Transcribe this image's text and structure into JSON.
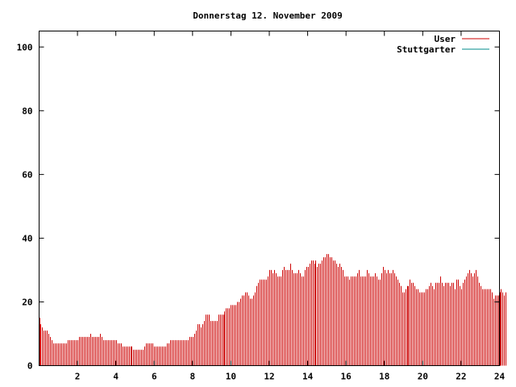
{
  "chart_data": {
    "type": "bar",
    "title": "Donnerstag 12. November 2009",
    "xlabel": "",
    "ylabel": "",
    "xlim": [
      0,
      24
    ],
    "ylim": [
      0,
      105
    ],
    "xticks": [
      2,
      4,
      6,
      8,
      10,
      12,
      14,
      16,
      18,
      20,
      22,
      24
    ],
    "yticks": [
      0,
      20,
      40,
      60,
      80,
      100
    ],
    "grid": false,
    "legend_position": "top-right",
    "series": [
      {
        "name": "User",
        "color": "#cc0000",
        "interval_minutes": 5,
        "values": [
          15,
          13,
          12,
          11,
          11,
          11,
          10,
          9,
          8,
          7,
          7,
          7,
          7,
          7,
          7,
          7,
          7,
          7,
          8,
          8,
          8,
          8,
          8,
          8,
          8,
          9,
          9,
          9,
          9,
          9,
          9,
          9,
          10,
          9,
          9,
          9,
          9,
          9,
          10,
          9,
          8,
          8,
          8,
          8,
          8,
          8,
          8,
          8,
          8,
          7,
          7,
          7,
          6,
          6,
          6,
          6,
          6,
          6,
          6,
          5,
          5,
          5,
          5,
          5,
          5,
          5,
          6,
          7,
          7,
          7,
          7,
          7,
          6,
          6,
          6,
          6,
          6,
          6,
          6,
          6,
          7,
          7,
          8,
          8,
          8,
          8,
          8,
          8,
          8,
          8,
          8,
          8,
          8,
          8,
          9,
          9,
          9,
          10,
          11,
          13,
          13,
          12,
          13,
          14,
          16,
          16,
          16,
          14,
          14,
          14,
          14,
          14,
          16,
          16,
          16,
          16,
          17,
          18,
          18,
          18,
          19,
          19,
          19,
          19,
          20,
          20,
          21,
          22,
          22,
          23,
          23,
          22,
          21,
          21,
          22,
          23,
          25,
          26,
          27,
          27,
          27,
          27,
          27,
          28,
          30,
          30,
          29,
          30,
          29,
          28,
          28,
          28,
          30,
          31,
          30,
          30,
          30,
          32,
          30,
          29,
          29,
          29,
          30,
          29,
          28,
          28,
          30,
          31,
          31,
          32,
          33,
          33,
          32,
          33,
          31,
          32,
          32,
          33,
          34,
          34,
          35,
          35,
          34,
          34,
          33,
          33,
          32,
          31,
          32,
          31,
          30,
          28,
          28,
          28,
          27,
          28,
          28,
          28,
          28,
          29,
          30,
          28,
          28,
          28,
          28,
          30,
          29,
          28,
          28,
          28,
          29,
          28,
          27,
          27,
          29,
          31,
          30,
          29,
          30,
          29,
          29,
          30,
          29,
          28,
          27,
          26,
          25,
          23,
          23,
          24,
          25,
          25,
          27,
          26,
          26,
          25,
          24,
          24,
          23,
          23,
          23,
          23,
          24,
          24,
          25,
          26,
          25,
          24,
          26,
          26,
          26,
          28,
          26,
          25,
          26,
          26,
          26,
          25,
          26,
          26,
          24,
          27,
          27,
          25,
          24,
          26,
          27,
          28,
          29,
          30,
          29,
          28,
          29,
          30,
          28,
          26,
          25,
          24,
          24,
          24,
          24,
          24,
          24,
          23,
          21,
          22,
          22,
          22,
          23,
          24,
          23,
          22,
          23
        ]
      },
      {
        "name": "Stuttgarter",
        "color": "#008b8b",
        "values": []
      }
    ]
  }
}
